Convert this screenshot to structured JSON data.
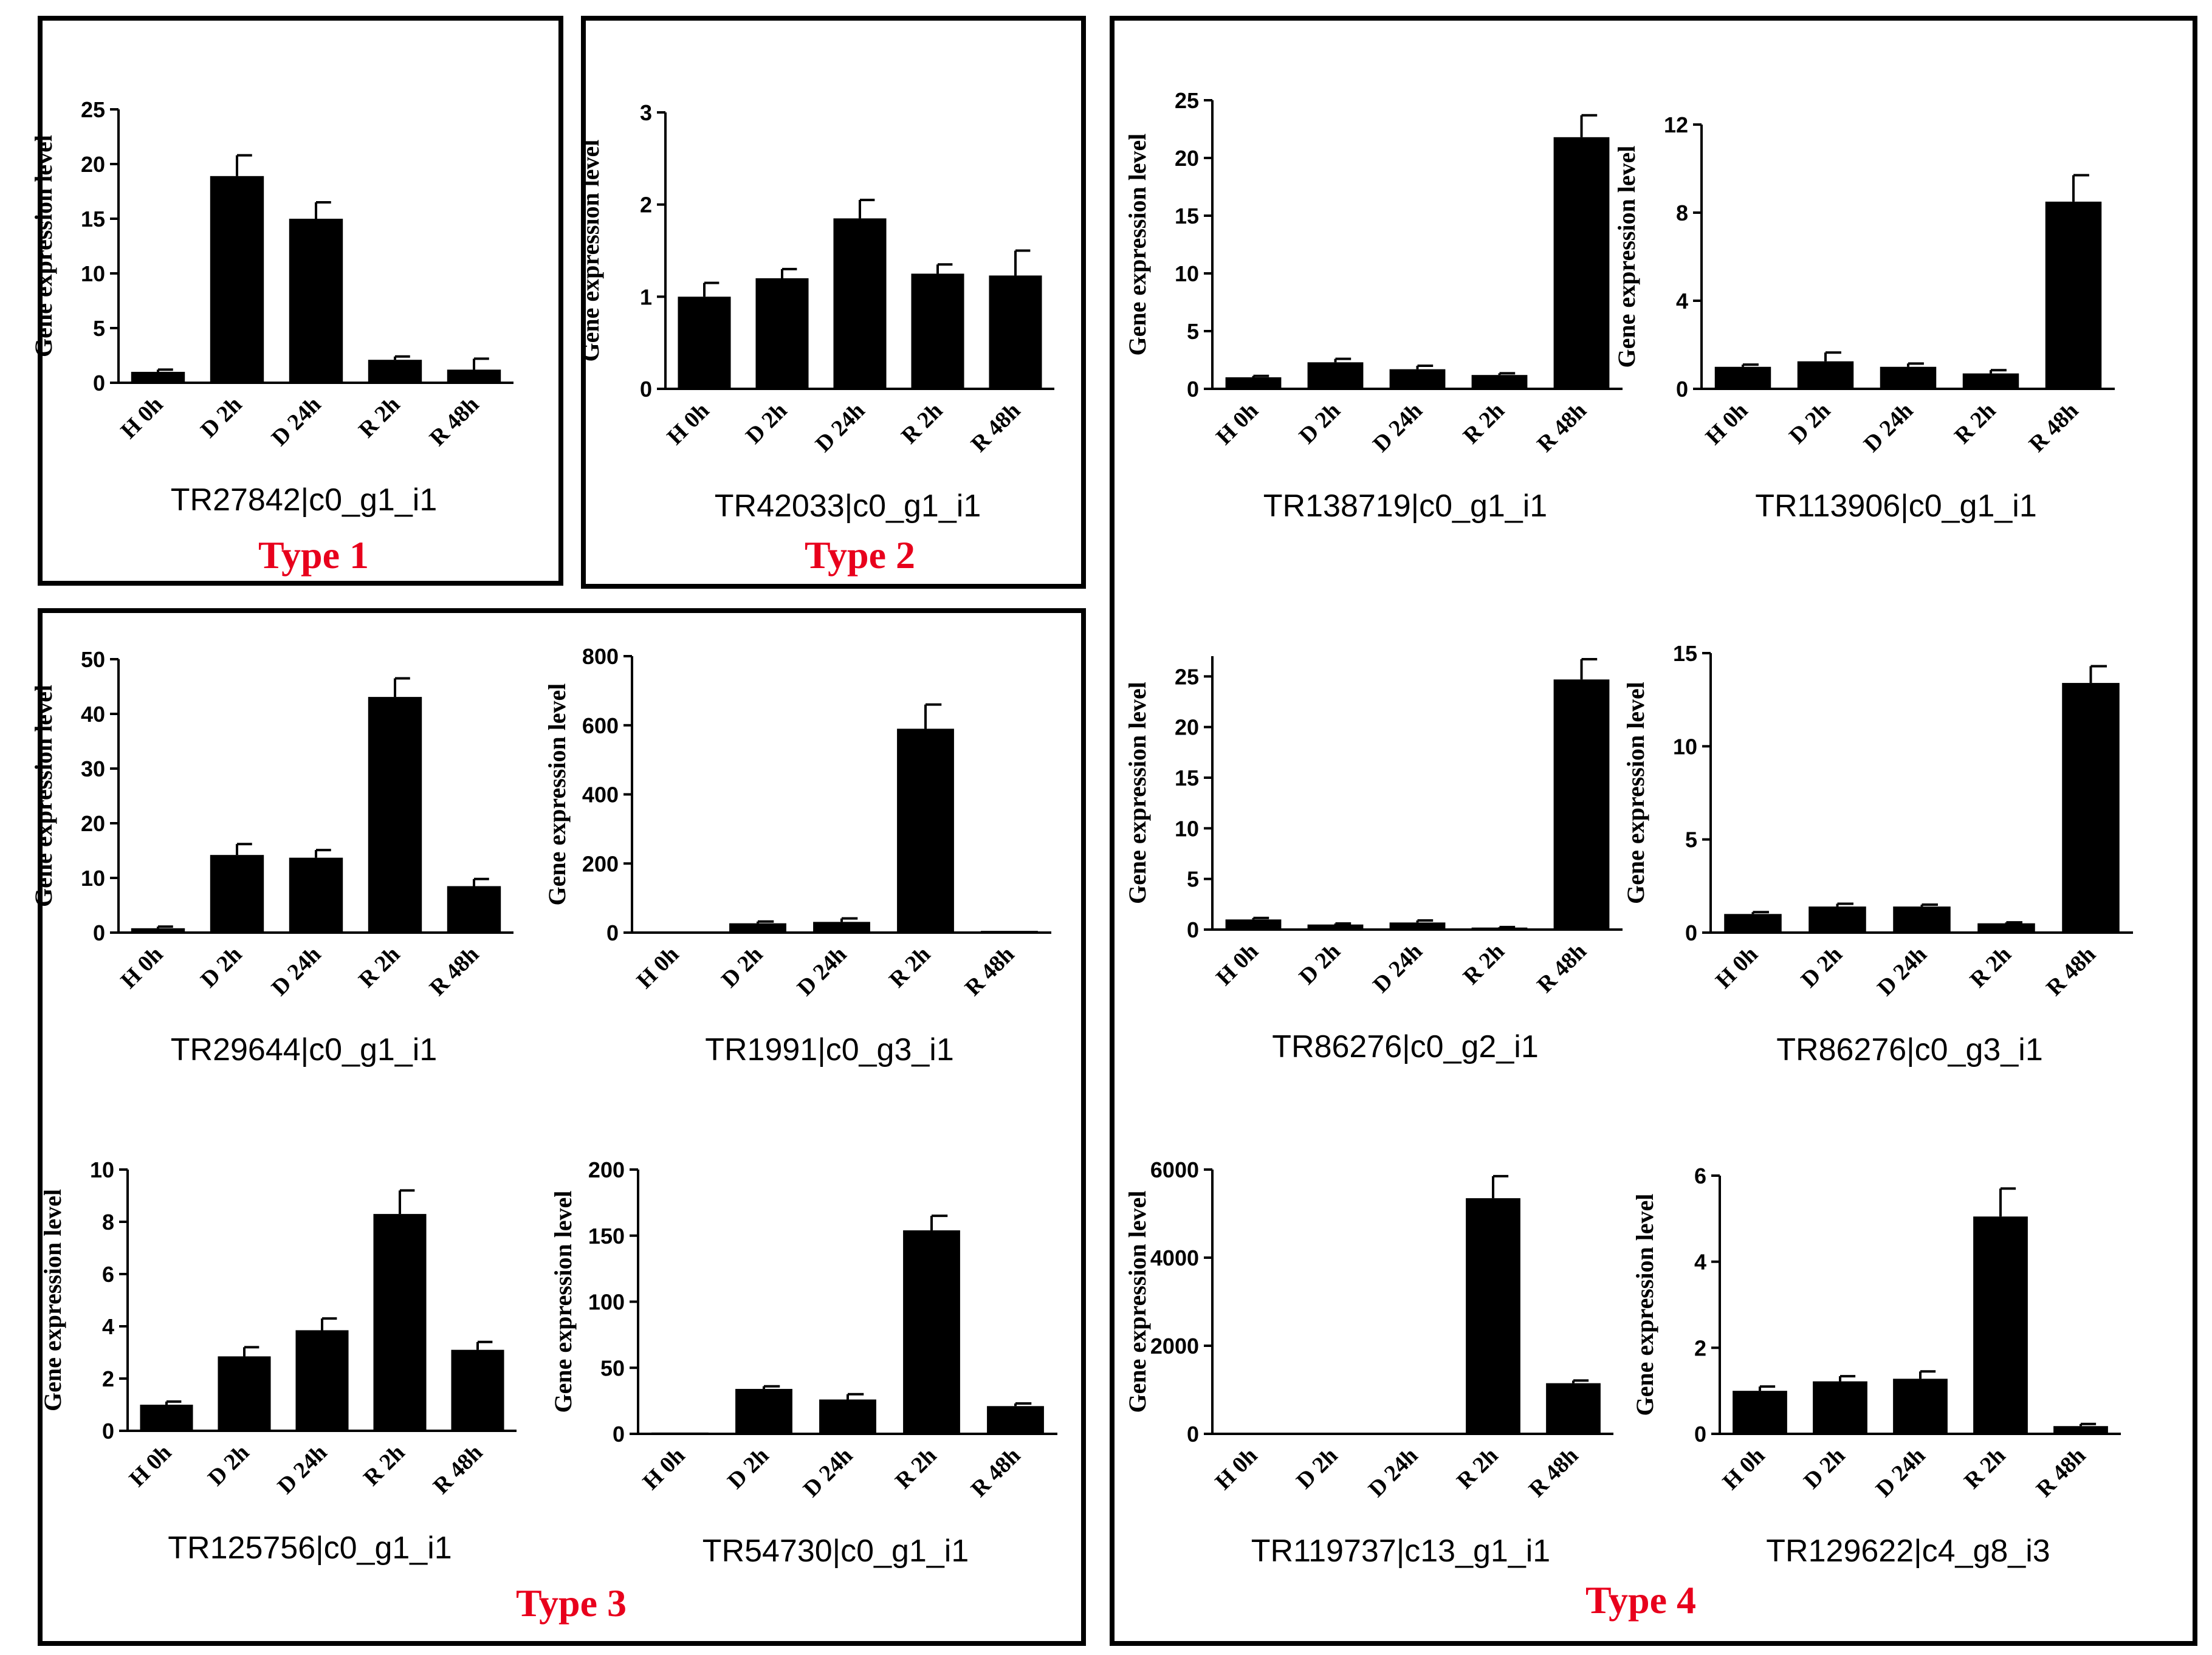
{
  "figure": {
    "type_labels": [
      "Type 1",
      "Type 2",
      "Type 3",
      "Type 4"
    ],
    "type_label_color": "#e8001c",
    "bar_color": "#000000"
  },
  "chart_data": [
    {
      "type": "bar",
      "group": "Type 1",
      "title": "TR27842|c0_g1_i1",
      "ylabel": "Gene expression level",
      "categories": [
        "H 0h",
        "D 2h",
        "D 24h",
        "R 2h",
        "R 48h"
      ],
      "values": [
        1.0,
        18.9,
        15.0,
        2.1,
        1.2
      ],
      "errors": [
        0.2,
        1.9,
        1.5,
        0.3,
        1.0
      ],
      "ylim": [
        0,
        25
      ],
      "yticks": [
        0,
        5,
        10,
        15,
        20,
        25
      ]
    },
    {
      "type": "bar",
      "group": "Type 2",
      "title": "TR42033|c0_g1_i1",
      "ylabel": "Gene expression level",
      "categories": [
        "H 0h",
        "D 2h",
        "D 24h",
        "R 2h",
        "R 48h"
      ],
      "values": [
        1.0,
        1.2,
        1.85,
        1.25,
        1.23
      ],
      "errors": [
        0.15,
        0.1,
        0.2,
        0.1,
        0.27
      ],
      "ylim": [
        0,
        3
      ],
      "yticks": [
        0,
        1,
        2,
        3
      ]
    },
    {
      "type": "bar",
      "group": "Type 3",
      "title": "TR29644|c0_g1_i1",
      "ylabel": "Gene expression level",
      "categories": [
        "H 0h",
        "D 2h",
        "D 24h",
        "R 2h",
        "R 48h"
      ],
      "values": [
        0.8,
        14.2,
        13.7,
        43.1,
        8.5
      ],
      "errors": [
        0.3,
        2.0,
        1.4,
        3.4,
        1.3
      ],
      "ylim": [
        0,
        50
      ],
      "yticks": [
        0,
        10,
        20,
        30,
        40,
        50
      ]
    },
    {
      "type": "bar",
      "group": "Type 3",
      "title": "TR1991|c0_g3_i1",
      "ylabel": "Gene expression level",
      "categories": [
        "H 0h",
        "D 2h",
        "D 24h",
        "R 2h",
        "R 48h"
      ],
      "values": [
        2,
        27,
        31,
        590,
        5
      ],
      "errors": [
        0,
        5,
        10,
        70,
        0
      ],
      "ylim": [
        0,
        800
      ],
      "yticks": [
        0,
        200,
        400,
        600,
        800
      ]
    },
    {
      "type": "bar",
      "group": "Type 3",
      "title": "TR125756|c0_g1_i1",
      "ylabel": "Gene expression level",
      "categories": [
        "H 0h",
        "D 2h",
        "D 24h",
        "R 2h",
        "R 48h"
      ],
      "values": [
        1.0,
        2.85,
        3.85,
        8.3,
        3.1
      ],
      "errors": [
        0.12,
        0.35,
        0.45,
        0.9,
        0.3
      ],
      "ylim": [
        0,
        10
      ],
      "yticks": [
        0,
        2,
        4,
        6,
        8,
        10
      ]
    },
    {
      "type": "bar",
      "group": "Type 3",
      "title": "TR54730|c0_g1_i1",
      "ylabel": "Gene expression level",
      "categories": [
        "H 0h",
        "D 2h",
        "D 24h",
        "R 2h",
        "R 48h"
      ],
      "values": [
        1,
        34,
        26,
        154,
        21
      ],
      "errors": [
        0,
        2,
        4,
        11,
        2
      ],
      "ylim": [
        0,
        200
      ],
      "yticks": [
        0,
        50,
        100,
        150,
        200
      ]
    },
    {
      "type": "bar",
      "group": "Type 4",
      "title": "TR138719|c0_g1_i1",
      "ylabel": "Gene expression level",
      "categories": [
        "H 0h",
        "D 2h",
        "D 24h",
        "R 2h",
        "R 48h"
      ],
      "values": [
        1.0,
        2.3,
        1.7,
        1.2,
        21.8
      ],
      "errors": [
        0.12,
        0.3,
        0.3,
        0.15,
        1.9
      ],
      "ylim": [
        0,
        25
      ],
      "yticks": [
        0,
        5,
        10,
        15,
        20,
        25
      ]
    },
    {
      "type": "bar",
      "group": "Type 4",
      "title": "TR113906|c0_g1_i1",
      "ylabel": "Gene expression level",
      "categories": [
        "H 0h",
        "D 2h",
        "D 24h",
        "R 2h",
        "R 48h"
      ],
      "values": [
        1.0,
        1.25,
        1.0,
        0.7,
        8.5
      ],
      "errors": [
        0.1,
        0.4,
        0.15,
        0.15,
        1.2
      ],
      "ylim": [
        0,
        12
      ],
      "yticks": [
        0,
        4,
        8,
        12
      ]
    },
    {
      "type": "bar",
      "group": "Type 4",
      "title": "TR86276|c0_g2_i1",
      "ylabel": "Gene expression level",
      "categories": [
        "H 0h",
        "D 2h",
        "D 24h",
        "R 2h",
        "R 48h"
      ],
      "values": [
        1.0,
        0.5,
        0.7,
        0.2,
        24.7
      ],
      "errors": [
        0.15,
        0.1,
        0.2,
        0.05,
        2.0
      ],
      "ylim": [
        0,
        27
      ],
      "yticks": [
        0,
        5,
        10,
        15,
        20,
        25
      ]
    },
    {
      "type": "bar",
      "group": "Type 4",
      "title": "TR86276|c0_g3_i1",
      "ylabel": "Gene expression level",
      "categories": [
        "H 0h",
        "D 2h",
        "D 24h",
        "R 2h",
        "R 48h"
      ],
      "values": [
        1.0,
        1.4,
        1.4,
        0.5,
        13.4
      ],
      "errors": [
        0.1,
        0.15,
        0.1,
        0.05,
        0.9
      ],
      "ylim": [
        0,
        15
      ],
      "yticks": [
        0,
        5,
        10,
        15
      ]
    },
    {
      "type": "bar",
      "group": "Type 4",
      "title": "TR119737|c13_g1_i1",
      "ylabel": "Gene expression level",
      "categories": [
        "H 0h",
        "D 2h",
        "D 24h",
        "R 2h",
        "R 48h"
      ],
      "values": [
        1,
        5,
        10,
        5350,
        1150
      ],
      "errors": [
        0,
        0,
        0,
        500,
        60
      ],
      "ylim": [
        0,
        6000
      ],
      "yticks": [
        0,
        2000,
        4000,
        6000
      ]
    },
    {
      "type": "bar",
      "group": "Type 4",
      "title": "TR129622|c4_g8_i3",
      "ylabel": "Gene expression level",
      "categories": [
        "H 0h",
        "D 2h",
        "D 24h",
        "R 2h",
        "R 48h"
      ],
      "values": [
        1.0,
        1.22,
        1.28,
        5.05,
        0.18
      ],
      "errors": [
        0.1,
        0.12,
        0.17,
        0.65,
        0.05
      ],
      "ylim": [
        0,
        6
      ],
      "yticks": [
        0,
        2,
        4,
        6
      ]
    }
  ]
}
